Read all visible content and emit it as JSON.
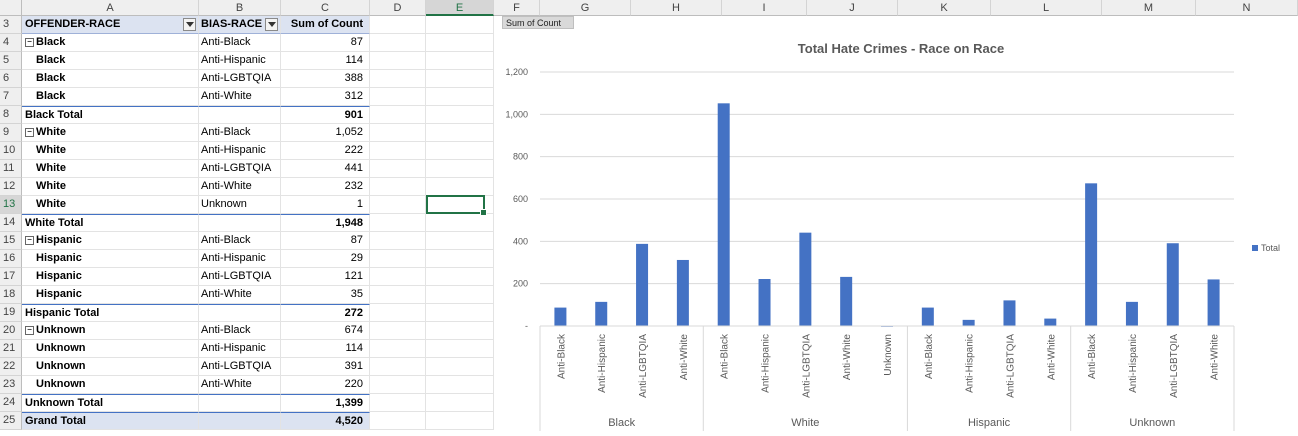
{
  "columns": [
    "A",
    "B",
    "C",
    "D",
    "E",
    "F",
    "G",
    "H",
    "I",
    "J",
    "K",
    "L",
    "M",
    "N"
  ],
  "selected_column": "E",
  "selected_row": "13",
  "pivot": {
    "header": {
      "row": "3",
      "a": "OFFENDER-RACE",
      "b": "BIAS-RACE",
      "c": "Sum of Count"
    },
    "rows": [
      {
        "row": "4",
        "a": "Black",
        "b": "Anti-Black",
        "c": "87",
        "kind": "group"
      },
      {
        "row": "5",
        "a": "Black",
        "b": "Anti-Hispanic",
        "c": "114",
        "kind": "detail"
      },
      {
        "row": "6",
        "a": "Black",
        "b": "Anti-LGBTQIA",
        "c": "388",
        "kind": "detail"
      },
      {
        "row": "7",
        "a": "Black",
        "b": "Anti-White",
        "c": "312",
        "kind": "detail"
      },
      {
        "row": "8",
        "a": "Black Total",
        "b": "",
        "c": "901",
        "kind": "subtotal"
      },
      {
        "row": "9",
        "a": "White",
        "b": "Anti-Black",
        "c": "1,052",
        "kind": "group"
      },
      {
        "row": "10",
        "a": "White",
        "b": "Anti-Hispanic",
        "c": "222",
        "kind": "detail"
      },
      {
        "row": "11",
        "a": "White",
        "b": "Anti-LGBTQIA",
        "c": "441",
        "kind": "detail"
      },
      {
        "row": "12",
        "a": "White",
        "b": "Anti-White",
        "c": "232",
        "kind": "detail"
      },
      {
        "row": "13",
        "a": "White",
        "b": "Unknown",
        "c": "1",
        "kind": "detail"
      },
      {
        "row": "14",
        "a": "White Total",
        "b": "",
        "c": "1,948",
        "kind": "subtotal"
      },
      {
        "row": "15",
        "a": "Hispanic",
        "b": "Anti-Black",
        "c": "87",
        "kind": "group"
      },
      {
        "row": "16",
        "a": "Hispanic",
        "b": "Anti-Hispanic",
        "c": "29",
        "kind": "detail"
      },
      {
        "row": "17",
        "a": "Hispanic",
        "b": "Anti-LGBTQIA",
        "c": "121",
        "kind": "detail"
      },
      {
        "row": "18",
        "a": "Hispanic",
        "b": "Anti-White",
        "c": "35",
        "kind": "detail"
      },
      {
        "row": "19",
        "a": "Hispanic Total",
        "b": "",
        "c": "272",
        "kind": "subtotal"
      },
      {
        "row": "20",
        "a": "Unknown",
        "b": "Anti-Black",
        "c": "674",
        "kind": "group"
      },
      {
        "row": "21",
        "a": "Unknown",
        "b": "Anti-Hispanic",
        "c": "114",
        "kind": "detail"
      },
      {
        "row": "22",
        "a": "Unknown",
        "b": "Anti-LGBTQIA",
        "c": "391",
        "kind": "detail"
      },
      {
        "row": "23",
        "a": "Unknown",
        "b": "Anti-White",
        "c": "220",
        "kind": "detail"
      },
      {
        "row": "24",
        "a": "Unknown Total",
        "b": "",
        "c": "1,399",
        "kind": "subtotal"
      },
      {
        "row": "25",
        "a": "Grand Total",
        "b": "",
        "c": "4,520",
        "kind": "grand"
      }
    ]
  },
  "chart_field_button": "Sum of Count",
  "colors": {
    "bar": "#4472c4",
    "selection": "#217346"
  },
  "chart_data": {
    "type": "bar",
    "title": "Total Hate Crimes - Race on Race",
    "ylim": [
      0,
      1200
    ],
    "yticks": [
      "-",
      "200",
      "400",
      "600",
      "800",
      "1,000",
      "1,200"
    ],
    "grid": true,
    "legend_position": "right",
    "groups": [
      {
        "name": "Black",
        "categories": [
          "Anti-Black",
          "Anti-Hispanic",
          "Anti-LGBTQIA",
          "Anti-White"
        ],
        "values": [
          87,
          114,
          388,
          312
        ]
      },
      {
        "name": "White",
        "categories": [
          "Anti-Black",
          "Anti-Hispanic",
          "Anti-LGBTQIA",
          "Anti-White",
          "Unknown"
        ],
        "values": [
          1052,
          222,
          441,
          232,
          1
        ]
      },
      {
        "name": "Hispanic",
        "categories": [
          "Anti-Black",
          "Anti-Hispanic",
          "Anti-LGBTQIA",
          "Anti-White"
        ],
        "values": [
          87,
          29,
          121,
          35
        ]
      },
      {
        "name": "Unknown",
        "categories": [
          "Anti-Black",
          "Anti-Hispanic",
          "Anti-LGBTQIA",
          "Anti-White"
        ],
        "values": [
          674,
          114,
          391,
          220
        ]
      }
    ],
    "series": [
      {
        "name": "Total"
      }
    ]
  }
}
